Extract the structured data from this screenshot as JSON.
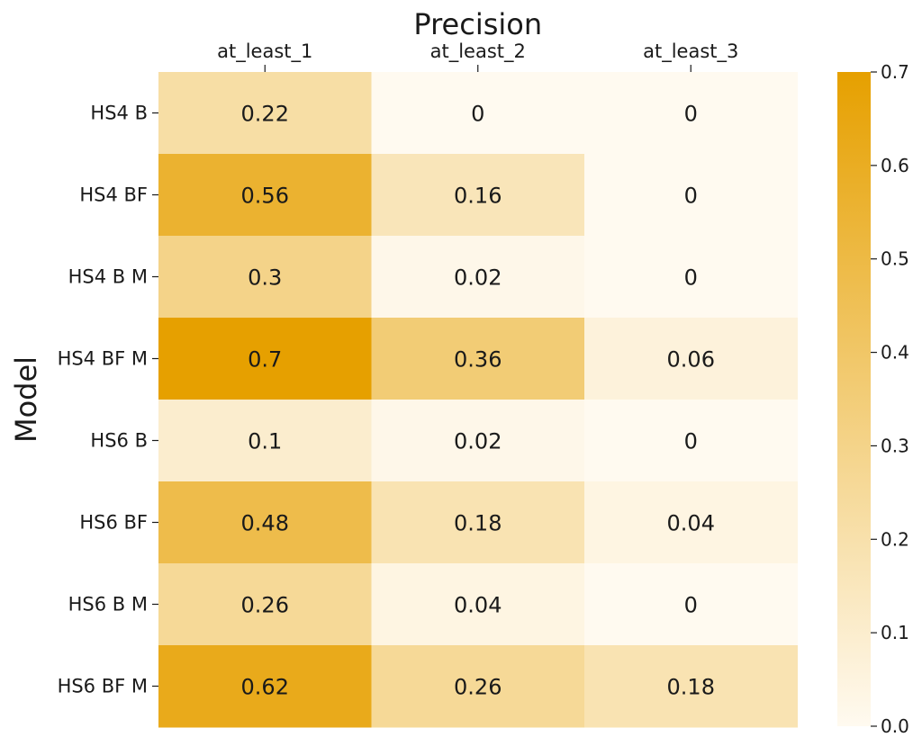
{
  "chart_data": {
    "type": "heatmap",
    "title": "Precision",
    "xlabel": "",
    "ylabel": "Model",
    "columns": [
      "at_least_1",
      "at_least_2",
      "at_least_3"
    ],
    "rows": [
      "HS4 B",
      "HS4 BF",
      "HS4 B M",
      "HS4 BF M",
      "HS6 B",
      "HS6 BF",
      "HS6 B M",
      "HS6 BF M"
    ],
    "values": [
      [
        0.22,
        0,
        0
      ],
      [
        0.56,
        0.16,
        0
      ],
      [
        0.3,
        0.02,
        0
      ],
      [
        0.7,
        0.36,
        0.06
      ],
      [
        0.1,
        0.02,
        0
      ],
      [
        0.48,
        0.18,
        0.04
      ],
      [
        0.26,
        0.04,
        0
      ],
      [
        0.62,
        0.26,
        0.18
      ]
    ],
    "value_labels": [
      [
        "0.22",
        "0",
        "0"
      ],
      [
        "0.56",
        "0.16",
        "0"
      ],
      [
        "0.3",
        "0.02",
        "0"
      ],
      [
        "0.7",
        "0.36",
        "0.06"
      ],
      [
        "0.1",
        "0.02",
        "0"
      ],
      [
        "0.48",
        "0.18",
        "0.04"
      ],
      [
        "0.26",
        "0.04",
        "0"
      ],
      [
        "0.62",
        "0.26",
        "0.18"
      ]
    ],
    "colorbar": {
      "range": [
        0.0,
        0.7
      ],
      "ticks": [
        "0.0",
        "0.1",
        "0.2",
        "0.3",
        "0.4",
        "0.5",
        "0.6",
        "0.7"
      ],
      "color_low": "#fffaf0",
      "color_high": "#e6a000"
    },
    "x_ticks_position": "top",
    "grid": false
  }
}
